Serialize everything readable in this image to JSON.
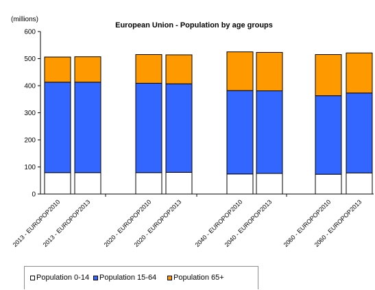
{
  "chart_data": {
    "type": "bar",
    "stacked": true,
    "title": "European Union - Population by age groups",
    "unit_label": "(millions)",
    "categories": [
      "2013 - EUROPOP2010",
      "2013 - EUROPOP2013",
      "2020 - EUROPOP2010",
      "2020 - EUROPOP2013",
      "2040 - EUROPOP2010",
      "2040 - EUROPOP2013",
      "2060 - EUROPOP2010",
      "2060 - EUROPOP2013"
    ],
    "series": [
      {
        "name": "Population 0-14",
        "color": "#ffffff",
        "values": [
          79,
          79,
          79,
          80,
          74,
          76,
          73,
          78
        ]
      },
      {
        "name": "Population 15-64",
        "color": "#3366ff",
        "values": [
          334,
          334,
          330,
          327,
          308,
          305,
          290,
          295
        ]
      },
      {
        "name": "Population 65+",
        "color": "#ff9900",
        "values": [
          93,
          94,
          106,
          107,
          143,
          142,
          152,
          148
        ]
      }
    ],
    "ylim": [
      0,
      600
    ],
    "yticks": [
      0,
      100,
      200,
      300,
      400,
      500,
      600
    ],
    "grid": false,
    "legend_position": "bottom"
  }
}
